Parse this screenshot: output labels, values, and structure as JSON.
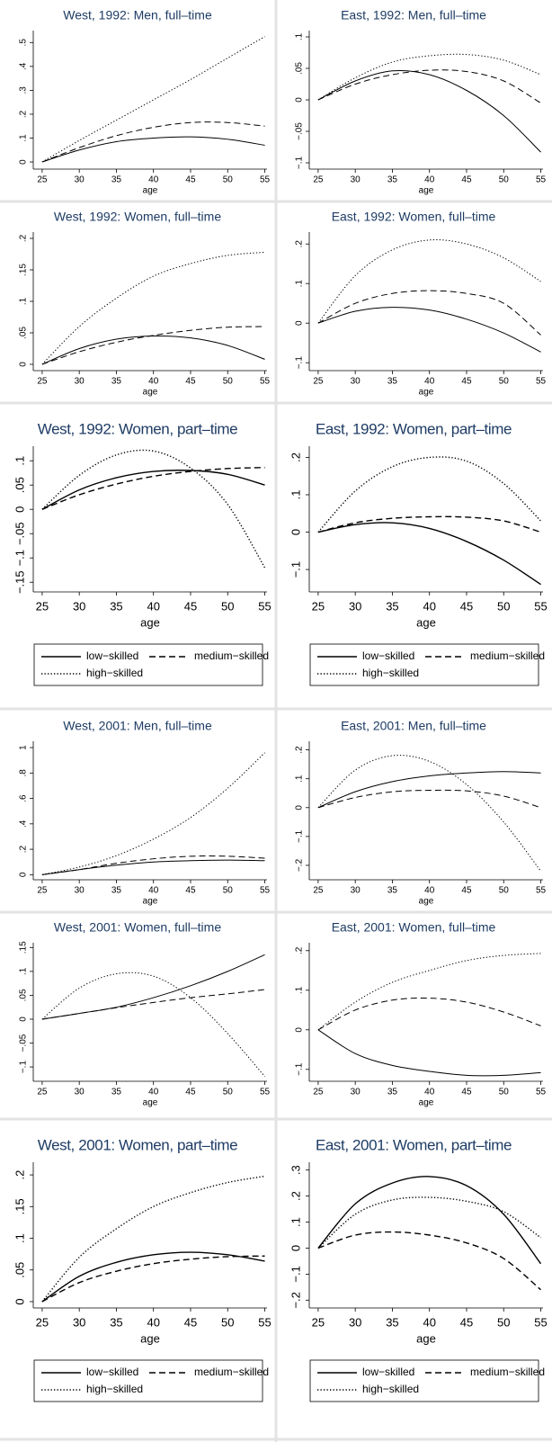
{
  "chart_data": [
    {
      "type": "line",
      "title": "West, 1992: Men, full–time",
      "xlabel": "age",
      "x": [
        25,
        30,
        35,
        40,
        45,
        50,
        55
      ],
      "xlim": [
        23.8,
        55.3
      ],
      "xticks": [
        25,
        30,
        35,
        40,
        45,
        50,
        55
      ],
      "ylim": [
        -0.03,
        0.55
      ],
      "yticks": [
        0,
        {
          "value": 0.1,
          "label": ".1"
        },
        {
          "value": 0.2,
          "label": ".2"
        },
        {
          "value": 0.3,
          "label": ".3"
        },
        {
          "value": 0.4,
          "label": ".4"
        },
        {
          "value": 0.5,
          "label": ".5"
        }
      ],
      "legend": false,
      "series": [
        {
          "color": "#000000",
          "style": "solid",
          "values": [
            0,
            0.05,
            0.085,
            0.1,
            0.105,
            0.095,
            0.07
          ]
        },
        {
          "color": "#000000",
          "style": "dashed",
          "values": [
            0,
            0.06,
            0.11,
            0.145,
            0.165,
            0.165,
            0.15
          ]
        },
        {
          "color": "#000000",
          "style": "dotted",
          "values": [
            0,
            0.09,
            0.175,
            0.26,
            0.345,
            0.435,
            0.525
          ]
        }
      ]
    },
    {
      "type": "line",
      "title": "East, 1992: Men, full–time",
      "xlabel": "age",
      "x": [
        25,
        30,
        35,
        40,
        45,
        50,
        55
      ],
      "xlim": [
        23.8,
        55.3
      ],
      "xticks": [
        25,
        30,
        35,
        40,
        45,
        50,
        55
      ],
      "ylim": [
        -0.11,
        0.11
      ],
      "yticks": [
        {
          "value": -0.1,
          "label": "−.1"
        },
        {
          "value": -0.05,
          "label": "−.05"
        },
        0,
        {
          "value": 0.05,
          "label": ".05"
        },
        {
          "value": 0.1,
          "label": ".1"
        }
      ],
      "legend": false,
      "series": [
        {
          "color": "#000000",
          "style": "solid",
          "values": [
            0,
            0.03,
            0.046,
            0.04,
            0.015,
            -0.025,
            -0.083
          ]
        },
        {
          "color": "#000000",
          "style": "dashed",
          "values": [
            0,
            0.025,
            0.04,
            0.047,
            0.045,
            0.03,
            -0.005
          ]
        },
        {
          "color": "#000000",
          "style": "dotted",
          "values": [
            0,
            0.035,
            0.06,
            0.07,
            0.072,
            0.063,
            0.04
          ]
        }
      ]
    },
    {
      "type": "line",
      "title": "West, 1992: Women, full–time",
      "xlabel": "age",
      "x": [
        25,
        30,
        35,
        40,
        45,
        50,
        55
      ],
      "xlim": [
        23.8,
        55.3
      ],
      "xticks": [
        25,
        30,
        35,
        40,
        45,
        50,
        55
      ],
      "ylim": [
        -0.01,
        0.21
      ],
      "yticks": [
        0,
        {
          "value": 0.05,
          "label": ".05"
        },
        {
          "value": 0.1,
          "label": ".1"
        },
        {
          "value": 0.15,
          "label": ".15"
        },
        {
          "value": 0.2,
          "label": ".2"
        }
      ],
      "legend": false,
      "series": [
        {
          "color": "#000000",
          "style": "solid",
          "values": [
            0,
            0.025,
            0.04,
            0.045,
            0.042,
            0.03,
            0.008
          ]
        },
        {
          "color": "#000000",
          "style": "dashed",
          "values": [
            0,
            0.02,
            0.035,
            0.046,
            0.054,
            0.059,
            0.06
          ]
        },
        {
          "color": "#000000",
          "style": "dotted",
          "values": [
            0,
            0.06,
            0.105,
            0.14,
            0.16,
            0.173,
            0.178
          ]
        }
      ]
    },
    {
      "type": "line",
      "title": "East, 1992: Women, full–time",
      "xlabel": "age",
      "x": [
        25,
        30,
        35,
        40,
        45,
        50,
        55
      ],
      "xlim": [
        23.8,
        55.3
      ],
      "xticks": [
        25,
        30,
        35,
        40,
        45,
        50,
        55
      ],
      "ylim": [
        -0.12,
        0.23
      ],
      "yticks": [
        {
          "value": -0.1,
          "label": "−.1"
        },
        0,
        {
          "value": 0.1,
          "label": ".1"
        },
        {
          "value": 0.2,
          "label": ".2"
        }
      ],
      "legend": false,
      "series": [
        {
          "color": "#000000",
          "style": "solid",
          "values": [
            0,
            0.03,
            0.04,
            0.033,
            0.01,
            -0.025,
            -0.073
          ]
        },
        {
          "color": "#000000",
          "style": "dashed",
          "values": [
            0,
            0.05,
            0.075,
            0.082,
            0.075,
            0.05,
            -0.03
          ]
        },
        {
          "color": "#000000",
          "style": "dotted",
          "values": [
            0,
            0.12,
            0.185,
            0.21,
            0.2,
            0.165,
            0.105
          ]
        }
      ]
    },
    {
      "type": "line",
      "title": "West, 1992: Women, part–time",
      "xlabel": "age",
      "x": [
        25,
        30,
        35,
        40,
        45,
        50,
        55
      ],
      "xlim": [
        23.8,
        55.3
      ],
      "xticks": [
        25,
        30,
        35,
        40,
        45,
        50,
        55
      ],
      "ylim": [
        -0.17,
        0.13
      ],
      "yticks": [
        {
          "value": -0.15,
          "label": "−.15"
        },
        {
          "value": -0.1,
          "label": "−.1"
        },
        {
          "value": -0.05,
          "label": "−.05"
        },
        0,
        {
          "value": 0.05,
          "label": ".05"
        },
        {
          "value": 0.1,
          "label": ".1"
        }
      ],
      "legend": true,
      "series": [
        {
          "name": "low−skilled",
          "color": "#000000",
          "style": "solid",
          "values": [
            0,
            0.04,
            0.065,
            0.078,
            0.08,
            0.072,
            0.05
          ]
        },
        {
          "name": "medium−skilled",
          "color": "#000000",
          "style": "dashed",
          "values": [
            0,
            0.03,
            0.052,
            0.068,
            0.078,
            0.084,
            0.086
          ]
        },
        {
          "name": "high−skilled",
          "color": "#000000",
          "style": "dotted",
          "values": [
            0,
            0.07,
            0.112,
            0.12,
            0.085,
            0.01,
            -0.12
          ]
        }
      ]
    },
    {
      "type": "line",
      "title": "East, 1992: Women, part–time",
      "xlabel": "age",
      "x": [
        25,
        30,
        35,
        40,
        45,
        50,
        55
      ],
      "xlim": [
        23.8,
        55.3
      ],
      "xticks": [
        25,
        30,
        35,
        40,
        45,
        50,
        55
      ],
      "ylim": [
        -0.16,
        0.23
      ],
      "yticks": [
        {
          "value": -0.1,
          "label": "−.1"
        },
        0,
        {
          "value": 0.1,
          "label": ".1"
        },
        {
          "value": 0.2,
          "label": ".2"
        }
      ],
      "legend": true,
      "series": [
        {
          "name": "low−skilled",
          "color": "#000000",
          "style": "solid",
          "values": [
            0,
            0.02,
            0.025,
            0.01,
            -0.025,
            -0.075,
            -0.14
          ]
        },
        {
          "name": "medium−skilled",
          "color": "#000000",
          "style": "dashed",
          "values": [
            0,
            0.025,
            0.037,
            0.041,
            0.04,
            0.03,
            0
          ]
        },
        {
          "name": "high−skilled",
          "color": "#000000",
          "style": "dotted",
          "values": [
            0,
            0.11,
            0.175,
            0.2,
            0.19,
            0.13,
            0.03
          ]
        }
      ]
    },
    {
      "type": "line",
      "title": "West, 2001: Men, full–time",
      "xlabel": "age",
      "x": [
        25,
        30,
        35,
        40,
        45,
        50,
        55
      ],
      "xlim": [
        23.8,
        55.3
      ],
      "xticks": [
        25,
        30,
        35,
        40,
        45,
        50,
        55
      ],
      "ylim": [
        -0.04,
        1.05
      ],
      "yticks": [
        0,
        {
          "value": 0.2,
          "label": ".2"
        },
        {
          "value": 0.4,
          "label": ".4"
        },
        {
          "value": 0.6,
          "label": ".6"
        },
        {
          "value": 0.8,
          "label": ".8"
        },
        1
      ],
      "legend": false,
      "series": [
        {
          "color": "#000000",
          "style": "solid",
          "values": [
            0,
            0.04,
            0.075,
            0.1,
            0.11,
            0.115,
            0.11
          ]
        },
        {
          "color": "#000000",
          "style": "dashed",
          "values": [
            0,
            0.04,
            0.09,
            0.125,
            0.145,
            0.145,
            0.13
          ]
        },
        {
          "color": "#000000",
          "style": "dotted",
          "values": [
            0,
            0.06,
            0.15,
            0.28,
            0.45,
            0.68,
            0.96
          ]
        }
      ]
    },
    {
      "type": "line",
      "title": "East, 2001: Men, full–time",
      "xlabel": "age",
      "x": [
        25,
        30,
        35,
        40,
        45,
        50,
        55
      ],
      "xlim": [
        23.8,
        55.3
      ],
      "xticks": [
        25,
        30,
        35,
        40,
        45,
        50,
        55
      ],
      "ylim": [
        -0.25,
        0.23
      ],
      "yticks": [
        {
          "value": -0.2,
          "label": "−.2"
        },
        {
          "value": -0.1,
          "label": "−.1"
        },
        0,
        {
          "value": 0.1,
          "label": ".1"
        },
        {
          "value": 0.2,
          "label": ".2"
        }
      ],
      "legend": false,
      "series": [
        {
          "color": "#000000",
          "style": "solid",
          "values": [
            0,
            0.055,
            0.09,
            0.11,
            0.12,
            0.125,
            0.12
          ]
        },
        {
          "color": "#000000",
          "style": "dashed",
          "values": [
            0,
            0.035,
            0.055,
            0.06,
            0.058,
            0.04,
            0
          ]
        },
        {
          "color": "#000000",
          "style": "dotted",
          "values": [
            0,
            0.13,
            0.18,
            0.16,
            0.08,
            -0.05,
            -0.22
          ]
        }
      ]
    },
    {
      "type": "line",
      "title": "West, 2001: Women, full–time",
      "xlabel": "age",
      "x": [
        25,
        30,
        35,
        40,
        45,
        50,
        55
      ],
      "xlim": [
        23.8,
        55.3
      ],
      "xticks": [
        25,
        30,
        35,
        40,
        45,
        50,
        55
      ],
      "ylim": [
        -0.13,
        0.16
      ],
      "yticks": [
        {
          "value": -0.1,
          "label": "−.1"
        },
        {
          "value": -0.05,
          "label": "−.05"
        },
        0,
        {
          "value": 0.05,
          "label": ".05"
        },
        {
          "value": 0.1,
          "label": ".1"
        },
        {
          "value": 0.15,
          "label": ".15"
        }
      ],
      "legend": false,
      "series": [
        {
          "color": "#000000",
          "style": "solid",
          "values": [
            0,
            0.012,
            0.025,
            0.045,
            0.07,
            0.1,
            0.135
          ]
        },
        {
          "color": "#000000",
          "style": "dashed",
          "values": [
            0,
            0.012,
            0.024,
            0.035,
            0.045,
            0.053,
            0.062
          ]
        },
        {
          "color": "#000000",
          "style": "dotted",
          "values": [
            0,
            0.065,
            0.095,
            0.09,
            0.045,
            -0.03,
            -0.12
          ]
        }
      ]
    },
    {
      "type": "line",
      "title": "East, 2001: Women, full–time",
      "xlabel": "age",
      "x": [
        25,
        30,
        35,
        40,
        45,
        50,
        55
      ],
      "xlim": [
        23.8,
        55.3
      ],
      "xticks": [
        25,
        30,
        35,
        40,
        45,
        50,
        55
      ],
      "ylim": [
        -0.13,
        0.22
      ],
      "yticks": [
        {
          "value": -0.1,
          "label": "−.1"
        },
        0,
        {
          "value": 0.1,
          "label": ".1"
        },
        {
          "value": 0.2,
          "label": ".2"
        }
      ],
      "legend": false,
      "series": [
        {
          "color": "#000000",
          "style": "solid",
          "values": [
            0,
            -0.06,
            -0.09,
            -0.105,
            -0.115,
            -0.115,
            -0.108
          ]
        },
        {
          "color": "#000000",
          "style": "dashed",
          "values": [
            0,
            0.05,
            0.075,
            0.08,
            0.07,
            0.045,
            0.01
          ]
        },
        {
          "color": "#000000",
          "style": "dotted",
          "values": [
            0,
            0.07,
            0.12,
            0.15,
            0.175,
            0.188,
            0.193
          ]
        }
      ]
    },
    {
      "type": "line",
      "title": "West, 2001: Women, part–time",
      "xlabel": "age",
      "x": [
        25,
        30,
        35,
        40,
        45,
        50,
        55
      ],
      "xlim": [
        23.8,
        55.3
      ],
      "xticks": [
        25,
        30,
        35,
        40,
        45,
        50,
        55
      ],
      "ylim": [
        -0.01,
        0.22
      ],
      "yticks": [
        0,
        {
          "value": 0.05,
          "label": ".05"
        },
        {
          "value": 0.1,
          "label": ".1"
        },
        {
          "value": 0.15,
          "label": ".15"
        },
        {
          "value": 0.2,
          "label": ".2"
        }
      ],
      "legend": true,
      "series": [
        {
          "name": "low−skilled",
          "color": "#000000",
          "style": "solid",
          "values": [
            0,
            0.04,
            0.062,
            0.074,
            0.078,
            0.074,
            0.064
          ]
        },
        {
          "name": "medium−skilled",
          "color": "#000000",
          "style": "dashed",
          "values": [
            0,
            0.03,
            0.048,
            0.06,
            0.067,
            0.071,
            0.072
          ]
        },
        {
          "name": "high−skilled",
          "color": "#000000",
          "style": "dotted",
          "values": [
            0,
            0.07,
            0.115,
            0.15,
            0.172,
            0.188,
            0.198
          ]
        }
      ]
    },
    {
      "type": "line",
      "title": "East, 2001: Women, part–time",
      "xlabel": "age",
      "x": [
        25,
        30,
        35,
        40,
        45,
        50,
        55
      ],
      "xlim": [
        23.8,
        55.3
      ],
      "xticks": [
        25,
        30,
        35,
        40,
        45,
        50,
        55
      ],
      "ylim": [
        -0.23,
        0.33
      ],
      "yticks": [
        {
          "value": -0.2,
          "label": "−.2"
        },
        {
          "value": -0.1,
          "label": "−.1"
        },
        0,
        {
          "value": 0.1,
          "label": ".1"
        },
        {
          "value": 0.2,
          "label": ".2"
        },
        {
          "value": 0.3,
          "label": ".3"
        }
      ],
      "legend": true,
      "series": [
        {
          "name": "low−skilled",
          "color": "#000000",
          "style": "solid",
          "values": [
            0,
            0.17,
            0.25,
            0.275,
            0.24,
            0.13,
            -0.06
          ]
        },
        {
          "name": "medium−skilled",
          "color": "#000000",
          "style": "dashed",
          "values": [
            0,
            0.05,
            0.062,
            0.05,
            0.02,
            -0.04,
            -0.16
          ]
        },
        {
          "name": "high−skilled",
          "color": "#000000",
          "style": "dotted",
          "values": [
            0,
            0.13,
            0.185,
            0.195,
            0.18,
            0.14,
            0.04
          ]
        }
      ]
    }
  ]
}
